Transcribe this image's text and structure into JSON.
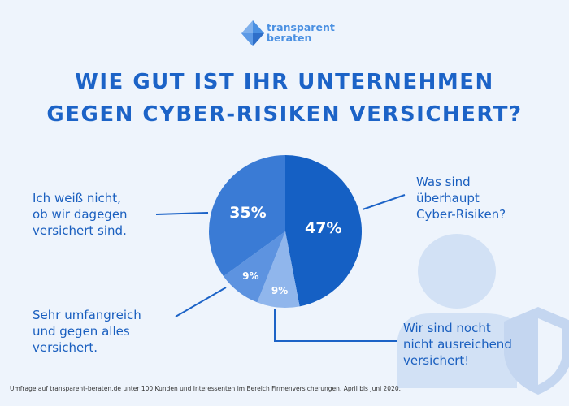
{
  "brand": {
    "line1": "transparent",
    "line2": "beraten"
  },
  "headline": {
    "line1": "WIE GUT IST IHR UNTERNEHMEN",
    "line2": "GEGEN CYBER-RISIKEN VERSICHERT?"
  },
  "chart_data": {
    "type": "pie",
    "title": "WIE GUT IST IHR UNTERNEHMEN GEGEN CYBER-RISIKEN VERSICHERT?",
    "slices": [
      {
        "label": "Was sind überhaupt Cyber-Risiken?",
        "value": 47,
        "display": "47%",
        "color": "#1560c4"
      },
      {
        "label": "Wir sind nocht nicht ausreichend versichert!",
        "value": 9,
        "display": "9%",
        "color": "#90b6ec"
      },
      {
        "label": "Sehr umfangreich und gegen alles versichert.",
        "value": 9,
        "display": "9%",
        "color": "#5d93e0"
      },
      {
        "label": "Ich weiß nicht, ob wir dagegen versichert sind.",
        "value": 35,
        "display": "35%",
        "color": "#3a7bd5"
      }
    ]
  },
  "labels": {
    "top_right": [
      "Was sind",
      "überhaupt",
      "Cyber-Risiken?"
    ],
    "top_left": [
      "Ich weiß nicht,",
      "ob wir dagegen",
      "versichert sind."
    ],
    "bottom_left": [
      "Sehr umfangreich",
      "und gegen alles",
      "versichert."
    ],
    "bottom_right": [
      "Wir sind nocht",
      "nicht ausreichend",
      "versichert!"
    ]
  },
  "footnote": "Umfrage auf transparent-beraten.de unter 100 Kunden und Interessenten im Bereich Firmenversicherungen, April bis Juni 2020.",
  "colors": {
    "accent": "#1c63c7",
    "background": "#eef4fc",
    "decor": "#d2e1f5"
  }
}
